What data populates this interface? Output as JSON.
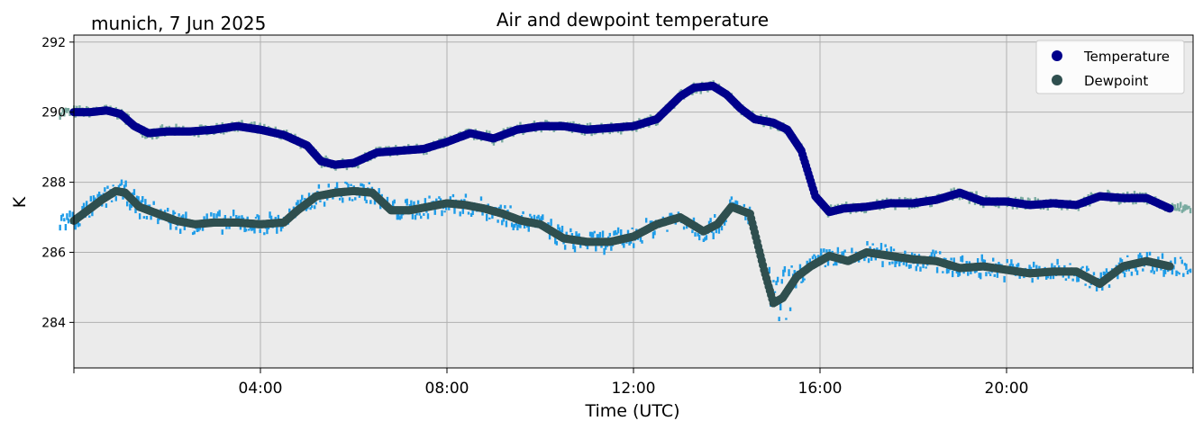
{
  "location_label": "munich, 7 Jun 2025",
  "chart_data": {
    "type": "scatter",
    "title": "Air and dewpoint temperature",
    "xlabel": "Time (UTC)",
    "ylabel": "K",
    "xlim": [
      0,
      24
    ],
    "ylim": [
      282.7,
      292.2
    ],
    "x_unit": "hours UTC",
    "x_ticks": [
      {
        "x": 4,
        "label": "04:00"
      },
      {
        "x": 8,
        "label": "08:00"
      },
      {
        "x": 12,
        "label": "12:00"
      },
      {
        "x": 16,
        "label": "16:00"
      },
      {
        "x": 20,
        "label": "20:00"
      }
    ],
    "x_minor_ticks": [
      0,
      24
    ],
    "y_ticks": [
      284,
      286,
      288,
      290,
      292
    ],
    "grid": true,
    "legend_position": "top-right",
    "background": "#ebebeb",
    "series": [
      {
        "name": "Temperature",
        "color": "#00008b",
        "raw_color": "#7aaba1",
        "x": [
          0.0,
          0.35,
          0.7,
          1.0,
          1.3,
          1.6,
          2.0,
          2.5,
          3.0,
          3.5,
          4.0,
          4.5,
          5.0,
          5.3,
          5.6,
          6.0,
          6.5,
          7.0,
          7.5,
          8.0,
          8.5,
          9.0,
          9.5,
          10.0,
          10.5,
          11.0,
          11.5,
          12.0,
          12.5,
          13.0,
          13.3,
          13.7,
          14.0,
          14.3,
          14.6,
          15.0,
          15.3,
          15.6,
          15.9,
          16.2,
          16.5,
          17.0,
          17.5,
          18.0,
          18.5,
          19.0,
          19.5,
          20.0,
          20.5,
          21.0,
          21.5,
          22.0,
          22.5,
          23.0,
          23.5
        ],
        "values": [
          290.0,
          290.0,
          290.05,
          289.95,
          289.6,
          289.4,
          289.45,
          289.45,
          289.5,
          289.6,
          289.5,
          289.35,
          289.05,
          288.6,
          288.5,
          288.55,
          288.85,
          288.9,
          288.95,
          289.15,
          289.4,
          289.25,
          289.5,
          289.6,
          289.6,
          289.5,
          289.55,
          289.6,
          289.8,
          290.45,
          290.7,
          290.75,
          290.5,
          290.1,
          289.8,
          289.7,
          289.5,
          288.9,
          287.6,
          287.15,
          287.25,
          287.3,
          287.4,
          287.4,
          287.5,
          287.7,
          287.45,
          287.45,
          287.35,
          287.4,
          287.35,
          287.6,
          287.55,
          287.55,
          287.25
        ]
      },
      {
        "name": "Dewpoint",
        "color": "#2f4f4f",
        "raw_color": "#1e9ce8",
        "x": [
          0.0,
          0.3,
          0.6,
          0.9,
          1.1,
          1.4,
          1.8,
          2.2,
          2.6,
          3.0,
          3.5,
          4.0,
          4.5,
          4.8,
          5.2,
          5.6,
          6.0,
          6.4,
          6.8,
          7.2,
          7.6,
          8.0,
          8.4,
          8.8,
          9.2,
          9.6,
          10.0,
          10.5,
          11.0,
          11.5,
          12.0,
          12.5,
          13.0,
          13.5,
          13.8,
          14.1,
          14.5,
          14.8,
          15.0,
          15.2,
          15.5,
          15.8,
          16.2,
          16.6,
          17.0,
          17.5,
          18.0,
          18.5,
          19.0,
          19.5,
          20.0,
          20.5,
          21.0,
          21.5,
          22.0,
          22.5,
          23.0,
          23.5
        ],
        "values": [
          286.9,
          287.2,
          287.5,
          287.75,
          287.7,
          287.3,
          287.1,
          286.9,
          286.8,
          286.85,
          286.85,
          286.8,
          286.85,
          287.2,
          287.6,
          287.7,
          287.75,
          287.7,
          287.2,
          287.2,
          287.3,
          287.4,
          287.35,
          287.25,
          287.1,
          286.9,
          286.8,
          286.4,
          286.3,
          286.3,
          286.45,
          286.8,
          287.0,
          286.6,
          286.8,
          287.3,
          287.1,
          285.5,
          284.55,
          284.7,
          285.3,
          285.6,
          285.9,
          285.75,
          286.0,
          285.9,
          285.8,
          285.75,
          285.55,
          285.6,
          285.5,
          285.4,
          285.45,
          285.45,
          285.1,
          285.6,
          285.75,
          285.6
        ]
      }
    ]
  }
}
